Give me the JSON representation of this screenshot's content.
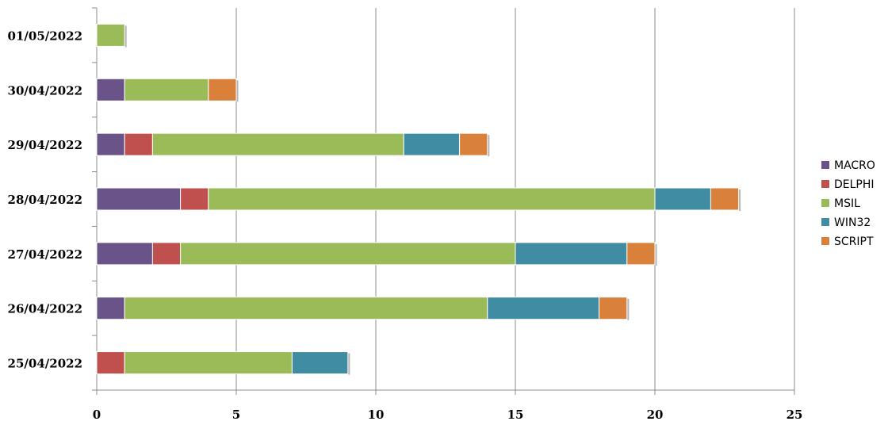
{
  "chart_data": {
    "type": "bar",
    "orientation": "horizontal",
    "stacked": true,
    "title": "",
    "xlabel": "",
    "ylabel": "",
    "categories": [
      "01/05/2022",
      "30/04/2022",
      "29/04/2022",
      "28/04/2022",
      "27/04/2022",
      "26/04/2022",
      "25/04/2022"
    ],
    "series": [
      {
        "name": "MACRO",
        "color": "#6a5389",
        "values": [
          0,
          1,
          1,
          3,
          2,
          1,
          0
        ]
      },
      {
        "name": "DELPHI",
        "color": "#c0504d",
        "values": [
          0,
          0,
          1,
          1,
          1,
          0,
          1
        ]
      },
      {
        "name": "MSIL",
        "color": "#9bbb59",
        "values": [
          1,
          3,
          9,
          16,
          12,
          13,
          6
        ]
      },
      {
        "name": "WIN32",
        "color": "#3f8ca3",
        "values": [
          0,
          0,
          2,
          2,
          4,
          4,
          2
        ]
      },
      {
        "name": "SCRIPT",
        "color": "#d9813b",
        "values": [
          0,
          1,
          1,
          1,
          1,
          1,
          0
        ]
      }
    ],
    "xlim": [
      0,
      25
    ],
    "xticks": [
      0,
      5,
      10,
      15,
      20,
      25
    ],
    "grid": true,
    "legend_position": "right"
  }
}
